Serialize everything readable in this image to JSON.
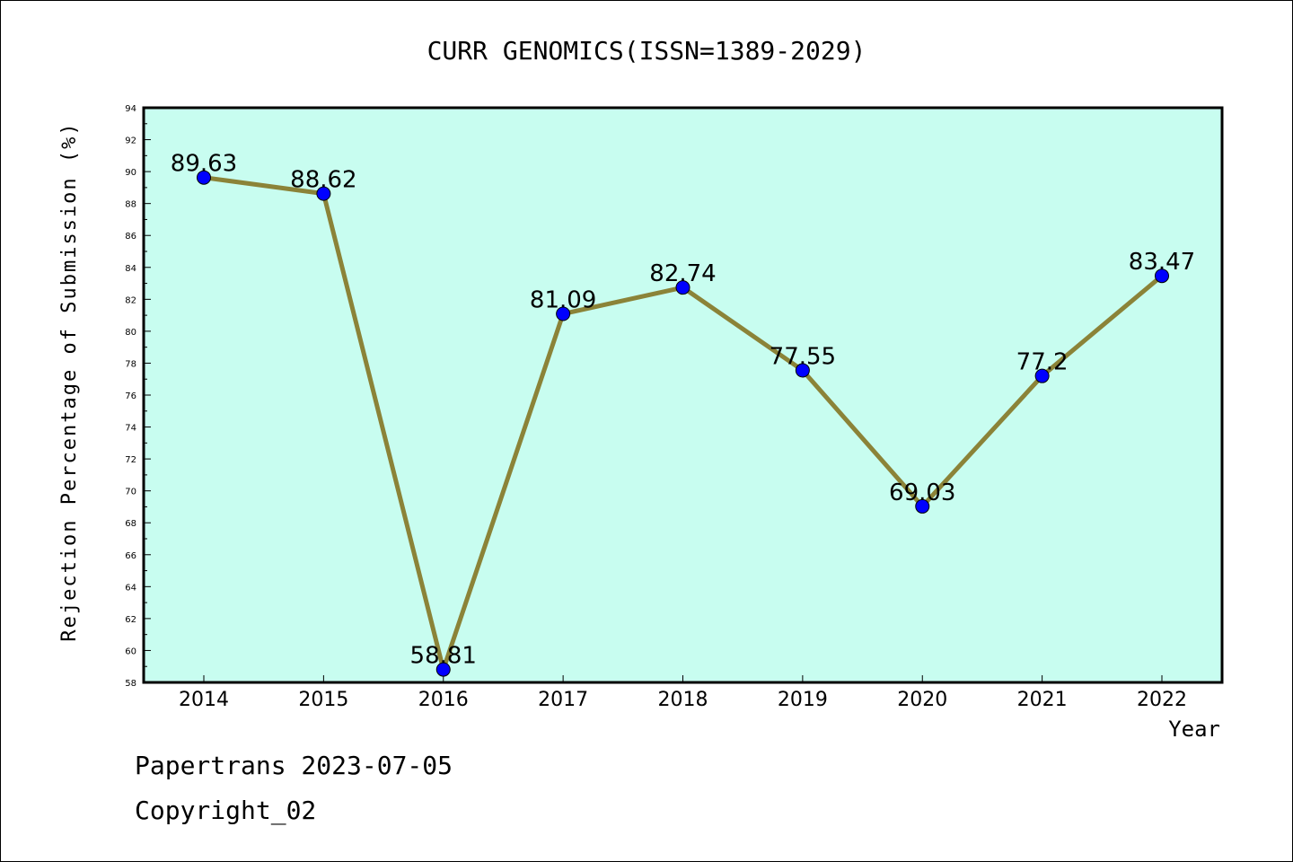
{
  "chart_data": {
    "type": "line",
    "title": "CURR GENOMICS(ISSN=1389-2029)",
    "xlabel": "Year",
    "ylabel": "Rejection Percentage of Submission (%)",
    "x": [
      "2014",
      "2015",
      "2016",
      "2017",
      "2018",
      "2019",
      "2020",
      "2021",
      "2022"
    ],
    "series": [
      {
        "values": [
          89.63,
          88.62,
          58.81,
          81.09,
          82.74,
          77.55,
          69.03,
          77.2,
          83.47
        ]
      }
    ],
    "data_labels": [
      "89.63",
      "88.62",
      "58.81",
      "81.09",
      "82.74",
      "77.55",
      "69.03",
      "77.2",
      "83.47"
    ],
    "ylim": [
      58,
      94
    ],
    "yticks": [
      58,
      60,
      62,
      64,
      66,
      68,
      70,
      72,
      74,
      76,
      78,
      80,
      82,
      84,
      86,
      88,
      90,
      92,
      94
    ],
    "grid": false,
    "colors": {
      "plot_background": "#c8fdf0",
      "line": "#8b8338",
      "marker": "#0000ff"
    }
  },
  "footer": {
    "line1": "Papertrans 2023-07-05",
    "line2": "Copyright_02"
  }
}
